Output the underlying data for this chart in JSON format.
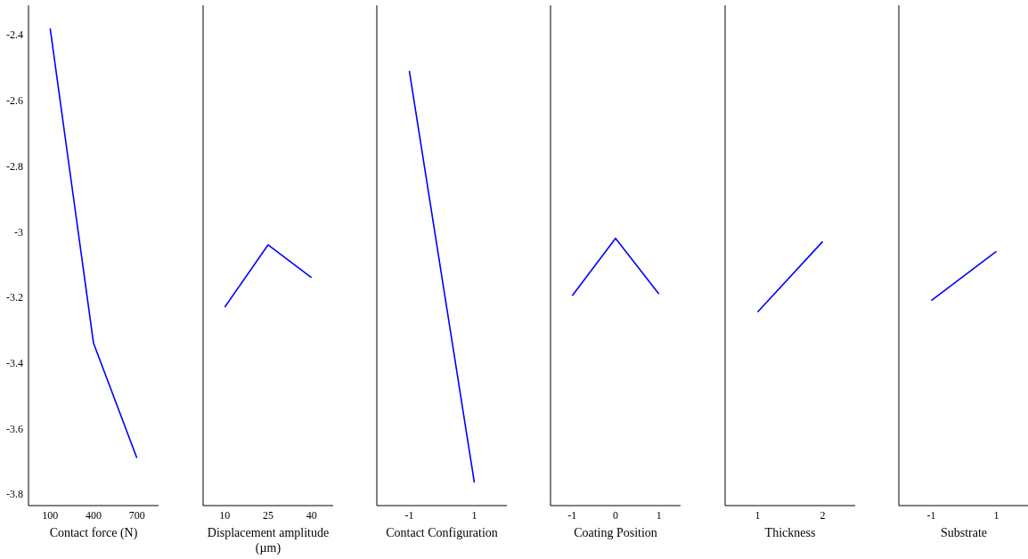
{
  "chart_data": [
    {
      "type": "line",
      "xlabel": "Contact force (N)",
      "x": [
        100,
        400,
        700
      ],
      "values": [
        -2.38,
        -3.34,
        -3.69
      ],
      "color": "#0000ff",
      "xlim": [
        -50,
        850
      ],
      "xticks": [
        100,
        400,
        700
      ],
      "ylim": [
        -3.835,
        -2.31
      ],
      "yticks": [
        -3.8,
        -3.6,
        -3.4,
        -3.2,
        {
          "value": -3,
          "label": "-3"
        },
        -2.8,
        -2.6,
        -2.4
      ]
    },
    {
      "type": "line",
      "xlabel": "Displacement amplitude (µm)",
      "x": [
        10,
        25,
        40
      ],
      "values": [
        -3.23,
        -3.04,
        -3.14
      ],
      "color": "#0000ff",
      "xlim": [
        2.5,
        47.5
      ],
      "xticks": [
        10,
        25,
        40
      ],
      "ylim": [
        -3.835,
        -2.31
      ],
      "yticks": [
        -3.8,
        -3.6,
        -3.4,
        -3.2,
        -3,
        -2.8,
        -2.6,
        -2.4
      ],
      "tick_labels": "x"
    },
    {
      "type": "line",
      "xlabel": "Contact Configuration",
      "x": [
        -1,
        1
      ],
      "values": [
        -2.51,
        -3.765
      ],
      "color": "#0000ff",
      "xlim": [
        -2,
        2
      ],
      "xticks": [
        -1,
        1
      ],
      "ylim": [
        -3.835,
        -2.31
      ],
      "yticks": [
        -3.8,
        -3.6,
        -3.4,
        -3.2,
        -3,
        -2.8,
        -2.6,
        -2.4
      ],
      "tick_labels": "x"
    },
    {
      "type": "line",
      "xlabel": "Coating Position",
      "x": [
        -1,
        0,
        1
      ],
      "values": [
        -3.195,
        -3.02,
        -3.19
      ],
      "color": "#0000ff",
      "xlim": [
        -1.5,
        1.5
      ],
      "xticks": [
        -1,
        0,
        1
      ],
      "ylim": [
        -3.835,
        -2.31
      ],
      "yticks": [
        -3.8,
        -3.6,
        -3.4,
        -3.2,
        -3,
        -2.8,
        -2.6,
        -2.4
      ],
      "tick_labels": "x"
    },
    {
      "type": "line",
      "xlabel": "Thickness",
      "x": [
        1,
        2
      ],
      "values": [
        -3.245,
        -3.03
      ],
      "color": "#0000ff",
      "xlim": [
        0.5,
        2.5
      ],
      "xticks": [
        1,
        2
      ],
      "ylim": [
        -3.835,
        -2.31
      ],
      "yticks": [
        -3.8,
        -3.6,
        -3.4,
        -3.2,
        -3,
        -2.8,
        -2.6,
        -2.4
      ],
      "tick_labels": "x"
    },
    {
      "type": "line",
      "xlabel": "Substrate",
      "x": [
        -1,
        1
      ],
      "values": [
        -3.21,
        -3.06
      ],
      "color": "#0000ff",
      "xlim": [
        -2,
        2
      ],
      "xticks": [
        -1,
        1
      ],
      "ylim": [
        -3.835,
        -2.31
      ],
      "yticks": [
        -3.8,
        -3.6,
        -3.4,
        -3.2,
        -3,
        -2.8,
        -2.6,
        -2.4
      ],
      "tick_labels": "x"
    }
  ]
}
